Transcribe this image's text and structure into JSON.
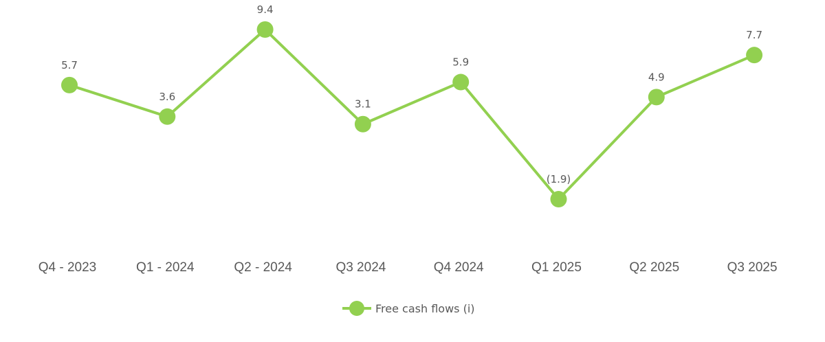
{
  "chart_data": {
    "type": "line",
    "title": "",
    "xlabel": "",
    "ylabel": "",
    "categories": [
      "Q4 - 2023",
      "Q1 - 2024",
      "Q2 - 2024",
      "Q3 2024",
      "Q4 2024",
      "Q1 2025",
      "Q2 2025",
      "Q3 2025"
    ],
    "series": [
      {
        "name": "Free cash flows (i)",
        "color": "#92D050",
        "values": [
          5.7,
          3.6,
          9.4,
          3.1,
          5.9,
          -1.9,
          4.9,
          7.7
        ],
        "labels": [
          "5.7",
          "3.6",
          "9.4",
          "3.1",
          "5.9",
          "(1.9)",
          "4.9",
          "7.7"
        ]
      }
    ],
    "ylim": [
      -3,
      11
    ],
    "grid": false,
    "y_axis_visible": false,
    "legend_position": "bottom"
  },
  "legend": {
    "label": "Free cash flows (i)"
  },
  "colors": {
    "series": "#92D050",
    "text": "#595959",
    "background": "#FFFFFF"
  }
}
